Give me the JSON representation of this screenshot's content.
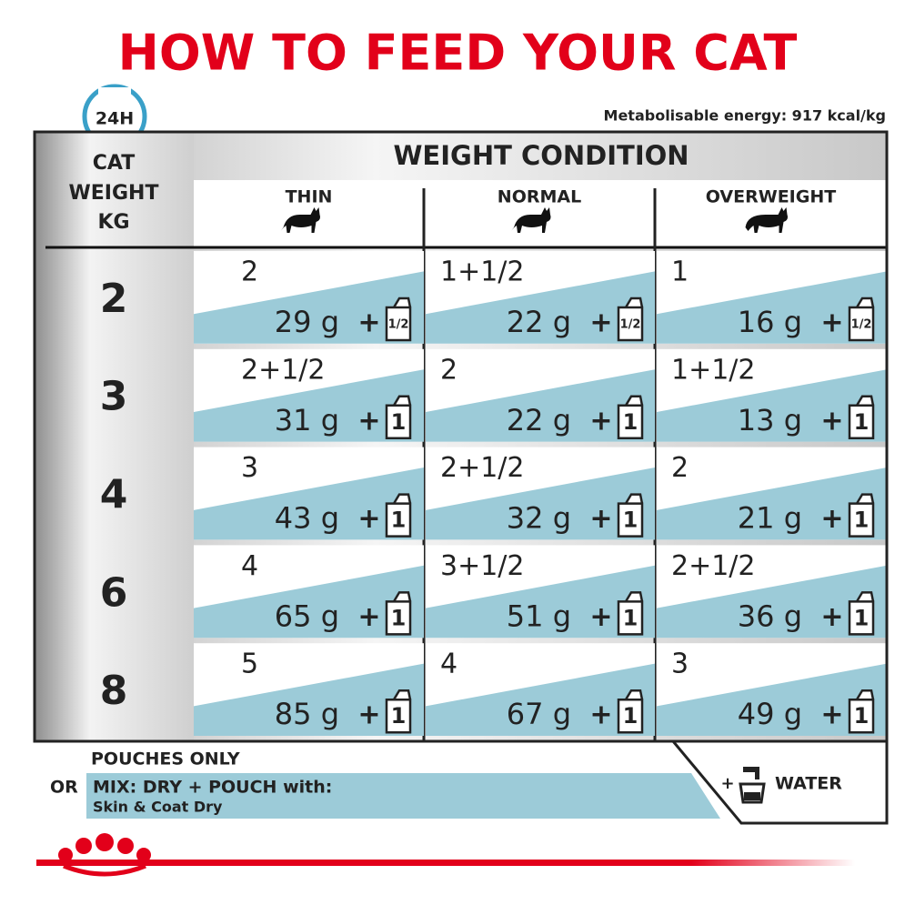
{
  "title": "HOW TO FEED YOUR CAT",
  "badge": "24H",
  "energy": "Metabolisable energy: 917 kcal/kg",
  "table": {
    "weight_header": [
      "CAT",
      "WEIGHT",
      "KG"
    ],
    "condition_header": "WEIGHT CONDITION",
    "columns": [
      "THIN",
      "NORMAL",
      "OVERWEIGHT"
    ],
    "plus": "+",
    "rows": [
      {
        "weight": "2",
        "cells": [
          {
            "pouches": "2",
            "dry": "29 g",
            "pouch": "1/2"
          },
          {
            "pouches": "1+1/2",
            "dry": "22 g",
            "pouch": "1/2"
          },
          {
            "pouches": "1",
            "dry": "16 g",
            "pouch": "1/2"
          }
        ]
      },
      {
        "weight": "3",
        "cells": [
          {
            "pouches": "2+1/2",
            "dry": "31 g",
            "pouch": "1"
          },
          {
            "pouches": "2",
            "dry": "22 g",
            "pouch": "1"
          },
          {
            "pouches": "1+1/2",
            "dry": "13 g",
            "pouch": "1"
          }
        ]
      },
      {
        "weight": "4",
        "cells": [
          {
            "pouches": "3",
            "dry": "43 g",
            "pouch": "1"
          },
          {
            "pouches": "2+1/2",
            "dry": "32 g",
            "pouch": "1"
          },
          {
            "pouches": "2",
            "dry": "21 g",
            "pouch": "1"
          }
        ]
      },
      {
        "weight": "6",
        "cells": [
          {
            "pouches": "4",
            "dry": "65 g",
            "pouch": "1"
          },
          {
            "pouches": "3+1/2",
            "dry": "51 g",
            "pouch": "1"
          },
          {
            "pouches": "2+1/2",
            "dry": "36 g",
            "pouch": "1"
          }
        ]
      },
      {
        "weight": "8",
        "cells": [
          {
            "pouches": "5",
            "dry": "85 g",
            "pouch": "1"
          },
          {
            "pouches": "4",
            "dry": "67 g",
            "pouch": "1"
          },
          {
            "pouches": "3",
            "dry": "49 g",
            "pouch": "1"
          }
        ]
      }
    ]
  },
  "footer": {
    "pouches_only": "POUCHES ONLY",
    "or": "OR",
    "mix": "MIX: DRY + POUCH with:",
    "product": "Skin & Coat Dry",
    "plus": "+",
    "water": "WATER"
  }
}
